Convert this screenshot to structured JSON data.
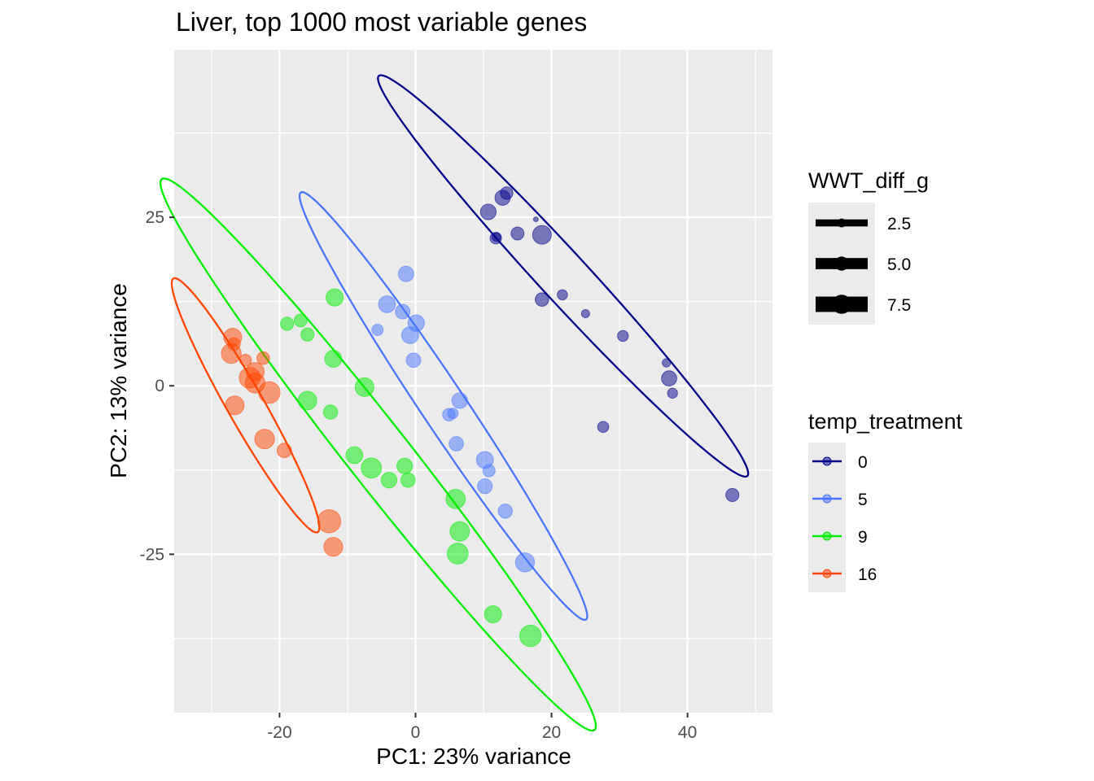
{
  "chart_data": {
    "type": "scatter",
    "title": "Liver, top 1000 most variable genes",
    "xlabel": "PC1: 23% variance",
    "ylabel": "PC2: 13% variance",
    "xlim": [
      -35.5,
      52.5
    ],
    "ylim": [
      -48.5,
      50
    ],
    "x_ticks": [
      -20,
      0,
      20,
      40
    ],
    "x_tick_labels": [
      "-20",
      "0",
      "20",
      "40"
    ],
    "y_ticks": [
      -25,
      0,
      25
    ],
    "y_tick_labels": [
      "-25",
      "0",
      "25"
    ],
    "grid": true,
    "background": "#ebebeb",
    "legend_position": "right",
    "legend_size": {
      "title": "WWT_diff_g",
      "entries": [
        {
          "label": "2.5",
          "value": 2.5
        },
        {
          "label": "5.0",
          "value": 5.0
        },
        {
          "label": "7.5",
          "value": 7.5
        }
      ]
    },
    "legend_color": {
      "title": "temp_treatment",
      "entries": [
        {
          "label": "0",
          "color": "#00008b"
        },
        {
          "label": "5",
          "color": "#4876ff"
        },
        {
          "label": "9",
          "color": "#00ee00"
        },
        {
          "label": "16",
          "color": "#ff4500"
        }
      ]
    },
    "series": [
      {
        "name": "0",
        "color": "#00008b",
        "ellipse": {
          "cx": 21.7,
          "cy": 16.3,
          "semi_major": 40.2,
          "semi_minor": 3.6,
          "angle_deg": -47.6
        },
        "points": [
          {
            "x": 10.7,
            "y": 25.8,
            "size": 5.8
          },
          {
            "x": 12.8,
            "y": 27.9,
            "size": 5.6
          },
          {
            "x": 13.4,
            "y": 28.6,
            "size": 4.3
          },
          {
            "x": 11.8,
            "y": 21.9,
            "size": 3.8
          },
          {
            "x": 11.9,
            "y": 22.1,
            "size": 2.6
          },
          {
            "x": 15.0,
            "y": 22.6,
            "size": 4.5
          },
          {
            "x": 17.7,
            "y": 24.7,
            "size": 0.6
          },
          {
            "x": 18.6,
            "y": 22.4,
            "size": 7.3
          },
          {
            "x": 18.6,
            "y": 12.8,
            "size": 4.8
          },
          {
            "x": 21.6,
            "y": 13.5,
            "size": 3.2
          },
          {
            "x": 25.0,
            "y": 10.7,
            "size": 2.2
          },
          {
            "x": 30.5,
            "y": 7.4,
            "size": 3.5
          },
          {
            "x": 36.9,
            "y": 3.4,
            "size": 2.3
          },
          {
            "x": 37.3,
            "y": 1.1,
            "size": 5.6
          },
          {
            "x": 37.8,
            "y": -1.1,
            "size": 3.1
          },
          {
            "x": 27.6,
            "y": -6.1,
            "size": 3.6
          },
          {
            "x": 46.6,
            "y": -16.2,
            "size": 4.6
          }
        ]
      },
      {
        "name": "5",
        "color": "#4876ff",
        "ellipse": {
          "cx": 4.1,
          "cy": -3.0,
          "semi_major": 38.0,
          "semi_minor": 3.3,
          "angle_deg": -56.5
        },
        "points": [
          {
            "x": -1.4,
            "y": 16.6,
            "size": 5.7
          },
          {
            "x": -4.2,
            "y": 12.1,
            "size": 6.4
          },
          {
            "x": -1.9,
            "y": 11.0,
            "size": 5.3
          },
          {
            "x": 0.1,
            "y": 9.3,
            "size": 6.2
          },
          {
            "x": -5.6,
            "y": 8.3,
            "size": 3.7
          },
          {
            "x": -0.8,
            "y": 7.5,
            "size": 6.4
          },
          {
            "x": -0.3,
            "y": 3.8,
            "size": 5.2
          },
          {
            "x": 6.5,
            "y": -2.2,
            "size": 5.8
          },
          {
            "x": 4.9,
            "y": -4.3,
            "size": 4.3
          },
          {
            "x": 5.5,
            "y": -4.1,
            "size": 3.3
          },
          {
            "x": 6.0,
            "y": -8.6,
            "size": 5.2
          },
          {
            "x": 10.2,
            "y": -11.0,
            "size": 6.4
          },
          {
            "x": 10.8,
            "y": -12.6,
            "size": 4.2
          },
          {
            "x": 10.2,
            "y": -14.9,
            "size": 5.4
          },
          {
            "x": 13.2,
            "y": -18.6,
            "size": 5.1
          },
          {
            "x": 16.1,
            "y": -26.2,
            "size": 7.4
          }
        ]
      },
      {
        "name": "9",
        "color": "#00ee00",
        "ellipse": {
          "cx": -5.5,
          "cy": -10.2,
          "semi_major": 51.8,
          "semi_minor": 4.6,
          "angle_deg": -52.1
        },
        "points": [
          {
            "x": -11.9,
            "y": 13.1,
            "size": 6.5
          },
          {
            "x": -16.9,
            "y": 9.7,
            "size": 4.5
          },
          {
            "x": -18.9,
            "y": 9.2,
            "size": 4.6
          },
          {
            "x": -15.9,
            "y": 7.6,
            "size": 4.6
          },
          {
            "x": -12.1,
            "y": 4.0,
            "size": 6.4
          },
          {
            "x": -7.5,
            "y": -0.2,
            "size": 7.3
          },
          {
            "x": -15.9,
            "y": -2.2,
            "size": 7.2
          },
          {
            "x": -12.5,
            "y": -3.9,
            "size": 5.1
          },
          {
            "x": -9.0,
            "y": -10.3,
            "size": 6.4
          },
          {
            "x": -6.5,
            "y": -12.2,
            "size": 8.0
          },
          {
            "x": -3.9,
            "y": -14.0,
            "size": 5.8
          },
          {
            "x": -1.6,
            "y": -11.9,
            "size": 5.8
          },
          {
            "x": -1.1,
            "y": -14.0,
            "size": 5.2
          },
          {
            "x": 5.9,
            "y": -16.8,
            "size": 7.6
          },
          {
            "x": 6.5,
            "y": -21.6,
            "size": 7.6
          },
          {
            "x": 6.2,
            "y": -24.9,
            "size": 8.3
          },
          {
            "x": 11.4,
            "y": -33.9,
            "size": 6.5
          },
          {
            "x": 16.9,
            "y": -37.1,
            "size": 8.6
          }
        ]
      },
      {
        "name": "16",
        "color": "#ff4500",
        "ellipse": {
          "cx": -25.0,
          "cy": -2.9,
          "semi_major": 21.6,
          "semi_minor": 2.7,
          "angle_deg": -60.6
        },
        "points": [
          {
            "x": -26.9,
            "y": 7.2,
            "size": 6.9
          },
          {
            "x": -26.7,
            "y": 6.2,
            "size": 4.3
          },
          {
            "x": -27.1,
            "y": 4.8,
            "size": 7.8
          },
          {
            "x": -25.0,
            "y": 3.8,
            "size": 3.9
          },
          {
            "x": -22.4,
            "y": 4.1,
            "size": 4.4
          },
          {
            "x": -23.6,
            "y": 2.1,
            "size": 7.0
          },
          {
            "x": -24.4,
            "y": 1.2,
            "size": 8.3
          },
          {
            "x": -23.6,
            "y": 0.4,
            "size": 7.8
          },
          {
            "x": -21.5,
            "y": -1.0,
            "size": 8.6
          },
          {
            "x": -26.6,
            "y": -2.9,
            "size": 7.3
          },
          {
            "x": -22.2,
            "y": -7.9,
            "size": 7.7
          },
          {
            "x": -19.3,
            "y": -9.6,
            "size": 5.2
          },
          {
            "x": -12.7,
            "y": -20.1,
            "size": 9.4
          },
          {
            "x": -12.1,
            "y": -23.9,
            "size": 7.3
          }
        ]
      }
    ]
  }
}
